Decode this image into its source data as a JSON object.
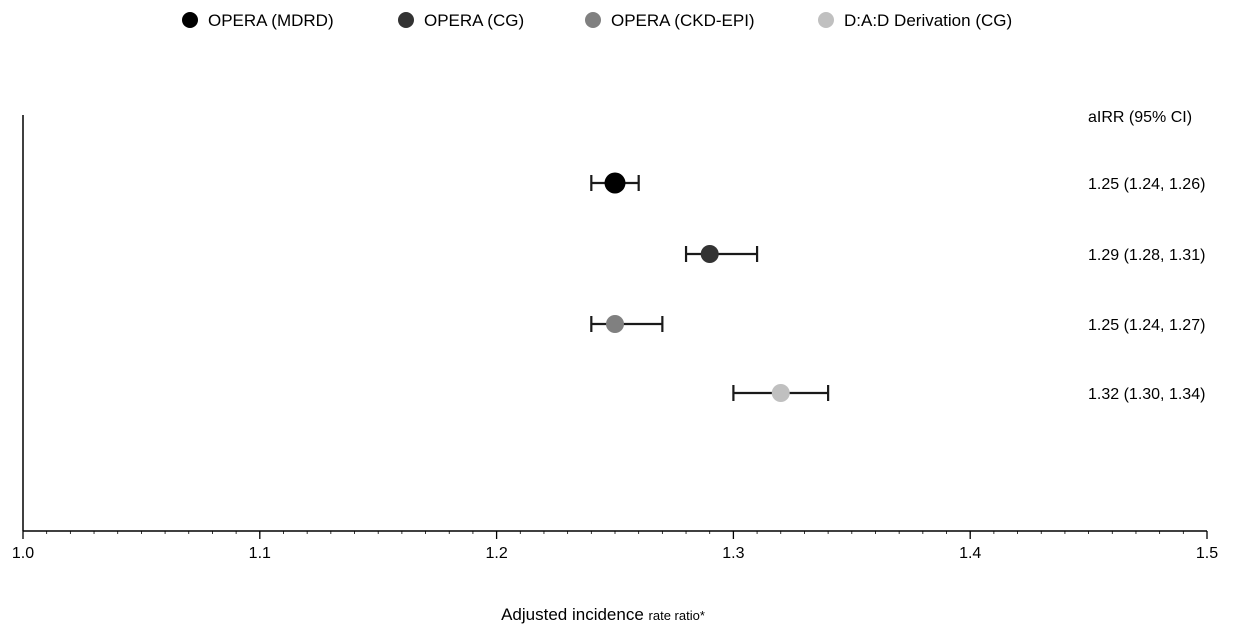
{
  "chart_data": {
    "type": "scatter",
    "title": "",
    "xlabel": "Adjusted incidence ",
    "xlabel_suffix": "rate ratio*",
    "ylabel": "",
    "xlim": [
      1.0,
      1.5
    ],
    "x_ticks": [
      1.0,
      1.1,
      1.2,
      1.3,
      1.4,
      1.5
    ],
    "x_tick_labels": [
      "1.0",
      "1.1",
      "1.2",
      "1.3",
      "1.4",
      "1.5"
    ],
    "grid": false,
    "legend_position": "top-center",
    "ci_column_header": "aIRR (95% CI)",
    "series": [
      {
        "name": "OPERA (MDRD)",
        "color": "#000000",
        "value": 1.25,
        "lower": 1.24,
        "upper": 1.26,
        "label": "1.25 (1.24, 1.26)"
      },
      {
        "name": "OPERA (CG)",
        "color": "#333333",
        "value": 1.29,
        "lower": 1.28,
        "upper": 1.31,
        "label": "1.29 (1.28, 1.31)"
      },
      {
        "name": "OPERA (CKD-EPI)",
        "color": "#808080",
        "value": 1.25,
        "lower": 1.24,
        "upper": 1.27,
        "label": "1.25 (1.24, 1.27)"
      },
      {
        "name": "D:A:D Derivation (CG)",
        "color": "#c0c0c0",
        "value": 1.32,
        "lower": 1.3,
        "upper": 1.34,
        "label": "1.32 (1.30, 1.34)"
      }
    ]
  }
}
